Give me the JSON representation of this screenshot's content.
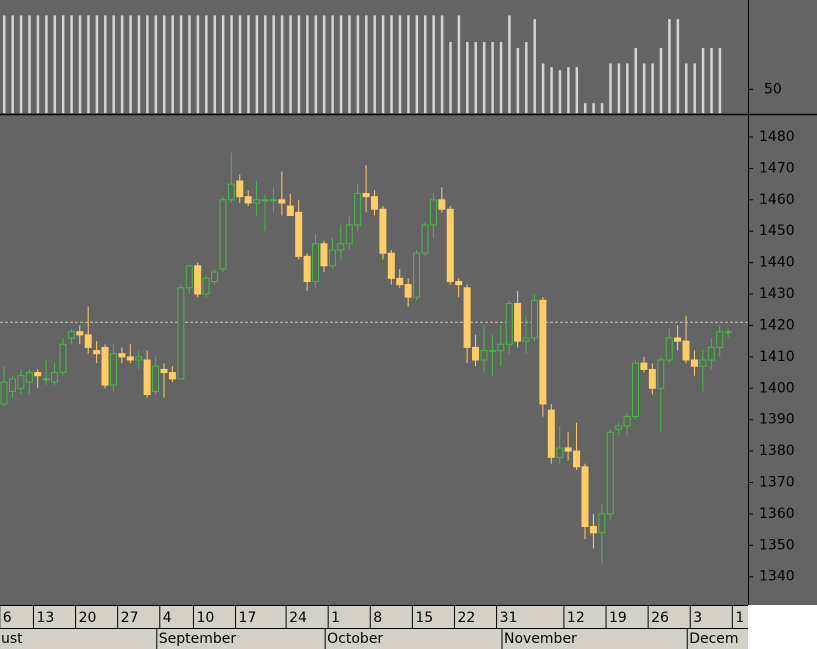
{
  "chart_data": [
    {
      "type": "bar",
      "color": "#d4d4d4",
      "ylim": [
        34,
        105
      ],
      "yticks": [
        50
      ],
      "values": [
        100,
        100,
        100,
        100,
        100,
        100,
        100,
        100,
        100,
        100,
        100,
        100,
        100,
        100,
        100,
        100,
        100,
        100,
        100,
        100,
        100,
        100,
        100,
        100,
        100,
        100,
        100,
        100,
        100,
        100,
        100,
        100,
        100,
        100,
        100,
        100,
        100,
        100,
        100,
        100,
        100,
        100,
        100,
        100,
        100,
        100,
        100,
        100,
        100,
        100,
        100,
        100,
        100,
        82,
        100,
        82,
        82,
        82,
        82,
        82,
        100,
        78,
        82,
        97.5,
        67.5,
        65,
        63,
        65,
        65,
        40.6,
        40.6,
        40.6,
        67.5,
        67.5,
        67.5,
        78,
        67.5,
        67.5,
        78,
        97.5,
        97.5,
        67.5,
        67.5,
        78,
        78,
        78,
        null,
        null
      ]
    },
    {
      "type": "candlestick",
      "up_color": "#44bb44",
      "down_color": "#ffcc66",
      "ylim": [
        1331,
        1487
      ],
      "yticks": [
        1340,
        1350,
        1360,
        1370,
        1380,
        1390,
        1400,
        1410,
        1420,
        1430,
        1440,
        1450,
        1460,
        1470,
        1480
      ],
      "reference_line": 1421,
      "categories": [
        "6",
        null,
        null,
        null,
        "13",
        null,
        null,
        null,
        null,
        "20",
        null,
        null,
        null,
        null,
        "27",
        null,
        null,
        null,
        null,
        "4",
        null,
        null,
        null,
        "10",
        null,
        null,
        null,
        null,
        "17",
        null,
        null,
        null,
        null,
        null,
        "24",
        null,
        null,
        null,
        null,
        "1",
        null,
        null,
        null,
        null,
        "8",
        null,
        null,
        null,
        null,
        "15",
        null,
        null,
        null,
        null,
        "22",
        null,
        null,
        null,
        null,
        "31",
        null,
        null,
        null,
        null,
        null,
        null,
        null,
        "12",
        null,
        null,
        null,
        null,
        "19",
        null,
        null,
        null,
        null,
        "26",
        null,
        null,
        null,
        null,
        "3",
        null,
        null,
        null,
        null,
        "1"
      ],
      "month_labels": [
        "ust",
        "September",
        "October",
        "November",
        "Decem"
      ],
      "open": [
        1395,
        1399,
        1400,
        1402,
        1405,
        1403,
        1402,
        1405,
        1416,
        1418,
        1417,
        1412,
        1413,
        1401,
        1411,
        1410,
        1409,
        1409,
        1399,
        1406,
        1405,
        1403,
        1432,
        1439,
        1430,
        1434,
        1438,
        1460,
        1466,
        1461,
        1459,
        1460,
        1460,
        1460,
        1458,
        1456,
        1442,
        1434,
        1446,
        1439,
        1444,
        1446,
        1452,
        1462,
        1461,
        1457,
        1443,
        1435,
        1433,
        1429,
        1443,
        1452,
        1460,
        1457,
        1434,
        1432,
        1413,
        1409,
        1412,
        1412,
        1414,
        1427,
        1415,
        1416,
        1428,
        1393,
        1378,
        1381,
        1380,
        1375,
        1356,
        1354,
        1360,
        1387,
        1388,
        1391,
        1408,
        1406,
        1400,
        1409,
        1416,
        1415,
        1409,
        1407,
        1409,
        1413,
        1418,
        null
      ],
      "high": [
        1407,
        1404,
        1406,
        1406,
        1406,
        1409,
        1408,
        1416,
        1419,
        1420,
        1426,
        1415,
        1414,
        1414,
        1413,
        1414,
        1412,
        1412,
        1410,
        1408,
        1407,
        1433,
        1439,
        1440,
        1436,
        1438,
        1461,
        1475,
        1468,
        1463,
        1466,
        1462,
        1464,
        1469,
        1462,
        1460,
        1443,
        1449,
        1447,
        1448,
        1452,
        1455,
        1465,
        1471,
        1463,
        1458,
        1444,
        1438,
        1435,
        1444,
        1453,
        1462,
        1464,
        1458,
        1435,
        1433,
        1417,
        1420,
        1417,
        1420,
        1428,
        1431,
        1423,
        1430,
        1429,
        1395,
        1388,
        1386,
        1389,
        1376,
        1360,
        1363,
        1387,
        1389,
        1392,
        1409,
        1410,
        1408,
        1410,
        1419,
        1420,
        1423,
        1412,
        1412,
        1416,
        1420,
        1419,
        null
      ],
      "low": [
        1394,
        1397,
        1398,
        1398,
        1400,
        1401,
        1401,
        1404,
        1414,
        1414,
        1411,
        1408,
        1400,
        1399,
        1408,
        1408,
        1406,
        1397,
        1398,
        1397,
        1402,
        1403,
        1430,
        1429,
        1429,
        1433,
        1437,
        1459,
        1459,
        1458,
        1455,
        1450,
        1456,
        1455,
        1455,
        1441,
        1431,
        1432,
        1437,
        1438,
        1441,
        1444,
        1450,
        1456,
        1455,
        1441,
        1433,
        1432,
        1426,
        1428,
        1442,
        1448,
        1456,
        1433,
        1429,
        1408,
        1407,
        1405,
        1404,
        1407,
        1411,
        1413,
        1411,
        1415,
        1391,
        1376,
        1376,
        1377,
        1374,
        1352,
        1349,
        1344,
        1358,
        1385,
        1385,
        1390,
        1405,
        1398,
        1386,
        1408,
        1412,
        1408,
        1404,
        1399,
        1406,
        1410,
        1416,
        null
      ],
      "close": [
        1402,
        1403,
        1404,
        1405,
        1404,
        1403,
        1405,
        1414,
        1418,
        1417,
        1413,
        1411,
        1401,
        1411,
        1410,
        1409,
        1410,
        1398,
        1407,
        1405,
        1403,
        1432,
        1439,
        1430,
        1435,
        1437,
        1460,
        1465,
        1461,
        1459,
        1460,
        1460,
        1460,
        1459,
        1455,
        1442,
        1434,
        1446,
        1439,
        1444,
        1446,
        1452,
        1462,
        1461,
        1457,
        1443,
        1435,
        1433,
        1429,
        1443,
        1452,
        1460,
        1457,
        1434,
        1433,
        1413,
        1409,
        1412,
        1412,
        1414,
        1427,
        1415,
        1416,
        1428,
        1395,
        1378,
        1381,
        1380,
        1375,
        1356,
        1354,
        1360,
        1386,
        1388,
        1391,
        1408,
        1406,
        1400,
        1409,
        1416,
        1415,
        1409,
        1407,
        1409,
        1413,
        1418,
        1418,
        null
      ]
    }
  ]
}
